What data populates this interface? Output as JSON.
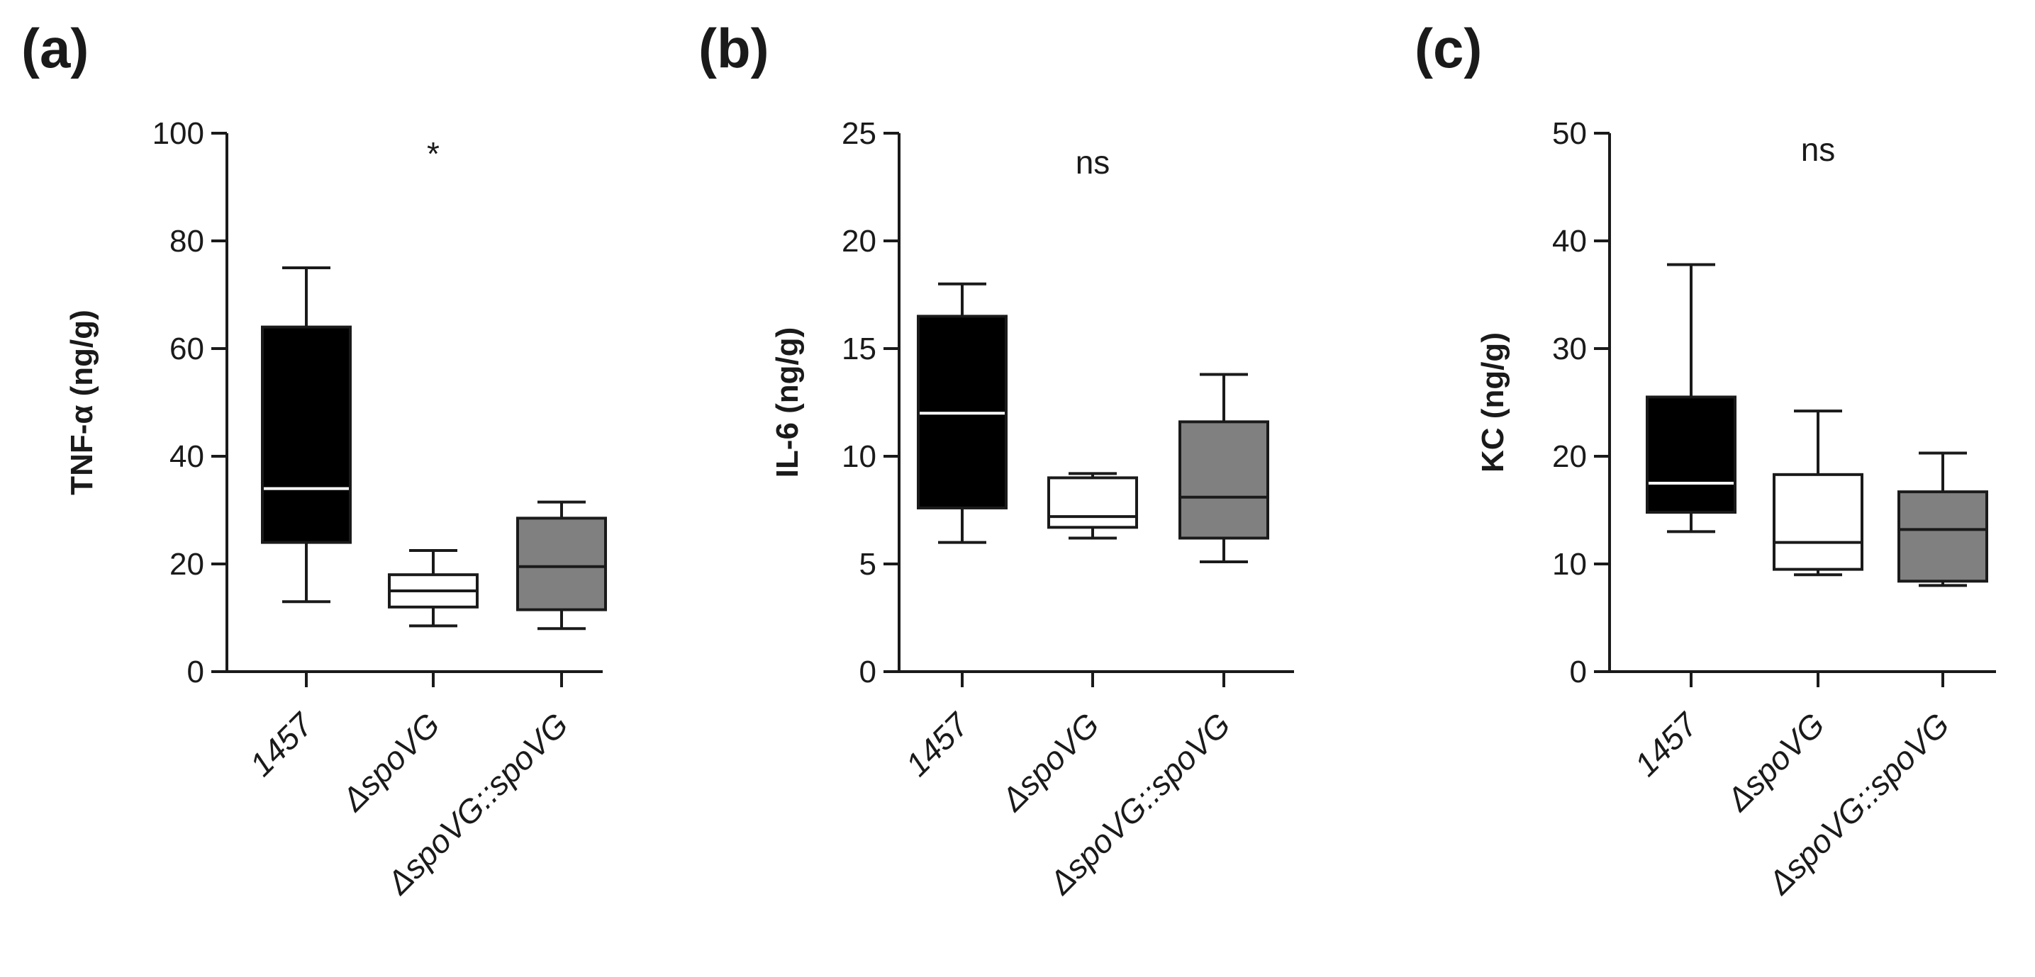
{
  "colors": {
    "wt": "#000000",
    "mutant": "#ffffff",
    "complemented": "#808080",
    "line": "#1a1a1a"
  },
  "chart_data": [
    {
      "type": "box",
      "panel_label": "(a)",
      "ylabel": "TNF-α (ng/g)",
      "ylim": [
        0,
        100
      ],
      "yticks": [
        0,
        20,
        40,
        60,
        80,
        100
      ],
      "ytick_labels": [
        "0",
        "20",
        "40",
        "60",
        "80",
        "100"
      ],
      "categories": [
        "1457",
        "ΔspoVG",
        "ΔspoVG::spoVG"
      ],
      "significance": "*",
      "boxes": [
        {
          "name": "1457",
          "min": 13,
          "q1": 24,
          "median": 34,
          "q3": 64,
          "max": 75,
          "fill": "#000000"
        },
        {
          "name": "ΔspoVG",
          "min": 8.5,
          "q1": 12,
          "median": 15,
          "q3": 18,
          "max": 22.5,
          "fill": "#ffffff"
        },
        {
          "name": "ΔspoVG::spoVG",
          "min": 8,
          "q1": 11.5,
          "median": 19.5,
          "q3": 28.5,
          "max": 31.5,
          "fill": "#808080"
        }
      ]
    },
    {
      "type": "box",
      "panel_label": "(b)",
      "ylabel": "IL-6 (ng/g)",
      "ylim": [
        0,
        25
      ],
      "yticks": [
        0,
        5,
        10,
        15,
        20,
        25
      ],
      "ytick_labels": [
        "0",
        "5",
        "10",
        "15",
        "20",
        "25"
      ],
      "categories": [
        "1457",
        "ΔspoVG",
        "ΔspoVG::spoVG"
      ],
      "significance": "ns",
      "boxes": [
        {
          "name": "1457",
          "min": 6,
          "q1": 7.6,
          "median": 12,
          "q3": 16.5,
          "max": 18,
          "fill": "#000000"
        },
        {
          "name": "ΔspoVG",
          "min": 6.2,
          "q1": 6.7,
          "median": 7.2,
          "q3": 9,
          "max": 9.2,
          "fill": "#ffffff"
        },
        {
          "name": "ΔspoVG::spoVG",
          "min": 5.1,
          "q1": 6.2,
          "median": 8.1,
          "q3": 11.6,
          "max": 13.8,
          "fill": "#808080"
        }
      ]
    },
    {
      "type": "box",
      "panel_label": "(c)",
      "ylabel": "KC (ng/g)",
      "ylim": [
        0,
        50
      ],
      "yticks": [
        0,
        10,
        20,
        30,
        40,
        50
      ],
      "ytick_labels": [
        "0",
        "10",
        "20",
        "30",
        "40",
        "50"
      ],
      "categories": [
        "1457",
        "ΔspoVG",
        "ΔspoVG::spoVG"
      ],
      "significance": "ns",
      "boxes": [
        {
          "name": "1457",
          "min": 13,
          "q1": 14.8,
          "median": 17.5,
          "q3": 25.5,
          "max": 37.8,
          "fill": "#000000"
        },
        {
          "name": "ΔspoVG",
          "min": 9,
          "q1": 9.5,
          "median": 12,
          "q3": 18.3,
          "max": 24.2,
          "fill": "#ffffff"
        },
        {
          "name": "ΔspoVG::spoVG",
          "min": 8,
          "q1": 8.4,
          "median": 13.2,
          "q3": 16.7,
          "max": 20.3,
          "fill": "#808080"
        }
      ]
    }
  ]
}
